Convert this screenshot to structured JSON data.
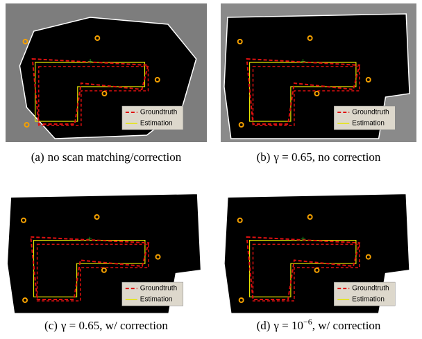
{
  "panels": [
    {
      "caption": {
        "label": "(a)",
        "text": "no scan matching/correction"
      },
      "legend": [
        "Groundtruth",
        "Estimation"
      ]
    },
    {
      "caption": {
        "label": "(b)",
        "text": "γ = 0.65, no correction"
      },
      "legend": [
        "Groundtruth",
        "Estimation"
      ]
    },
    {
      "caption": {
        "label": "(c)",
        "text": "γ = 0.65, w/ correction"
      },
      "legend": [
        "Groundtruth",
        "Estimation"
      ]
    },
    {
      "caption": {
        "label": "(d)",
        "text": "γ = 10",
        "sup": "−6",
        "rest": ", w/ correction"
      },
      "legend": [
        "Groundtruth",
        "Estimation"
      ]
    }
  ]
}
